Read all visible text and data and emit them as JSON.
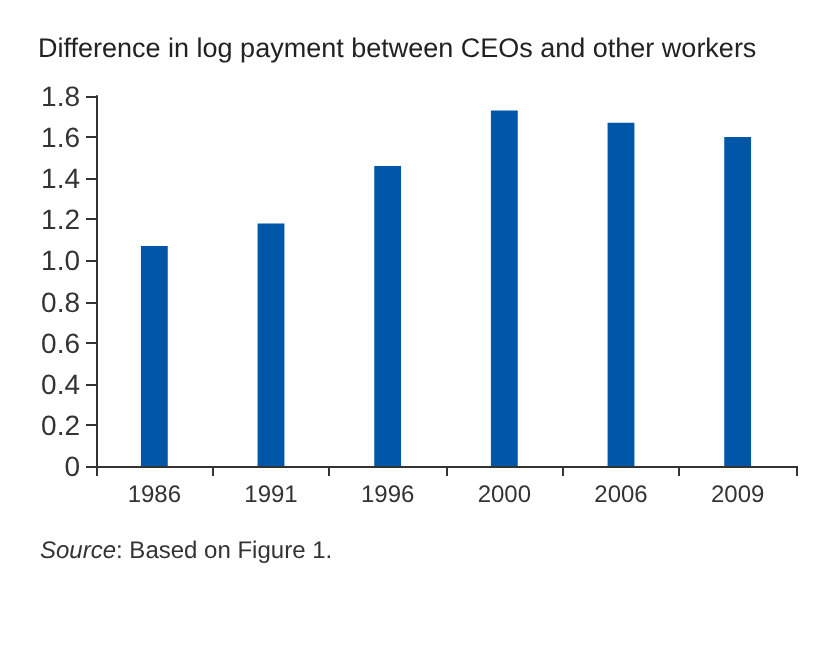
{
  "chart_data": {
    "type": "bar",
    "title": "Difference in log payment between CEOs and other workers",
    "categories": [
      "1986",
      "1991",
      "1996",
      "2000",
      "2006",
      "2009"
    ],
    "values": [
      1.07,
      1.18,
      1.46,
      1.73,
      1.67,
      1.6
    ],
    "color": "#0057a8",
    "ylim": [
      0,
      1.8
    ],
    "yticks": [
      0,
      0.2,
      0.4,
      0.6,
      0.8,
      {
        "value": 1,
        "label": "1.0"
      },
      1.2,
      1.4,
      1.6,
      1.8
    ],
    "grid": false,
    "annotations": [
      "Source: Based on Figure 1."
    ]
  }
}
